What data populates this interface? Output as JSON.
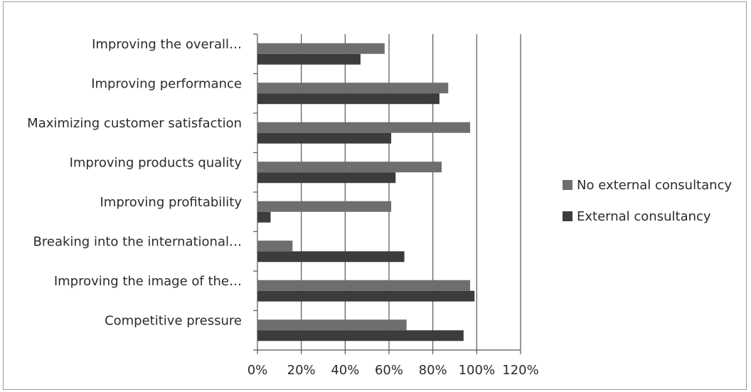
{
  "chart_data": {
    "type": "bar",
    "orientation": "horizontal",
    "categories": [
      "Improving the overall…",
      "Improving performance",
      "Maximizing customer satisfaction",
      "Improving products quality",
      "Improving profitability",
      "Breaking into the international…",
      "Improving the image of the…",
      "Competitive pressure"
    ],
    "series": [
      {
        "name": "No external consultancy",
        "color": "#6e6e6e",
        "values": [
          58,
          87,
          97,
          84,
          61,
          16,
          97,
          68
        ]
      },
      {
        "name": "External consultancy",
        "color": "#3c3c3c",
        "values": [
          47,
          83,
          61,
          63,
          6,
          67,
          99,
          94
        ]
      }
    ],
    "xlim": [
      0,
      120
    ],
    "x_ticks": [
      "0%",
      "20%",
      "40%",
      "60%",
      "80%",
      "100%",
      "120%"
    ],
    "grid": true,
    "legend_position": "right",
    "title": "",
    "xlabel": "",
    "ylabel": ""
  }
}
